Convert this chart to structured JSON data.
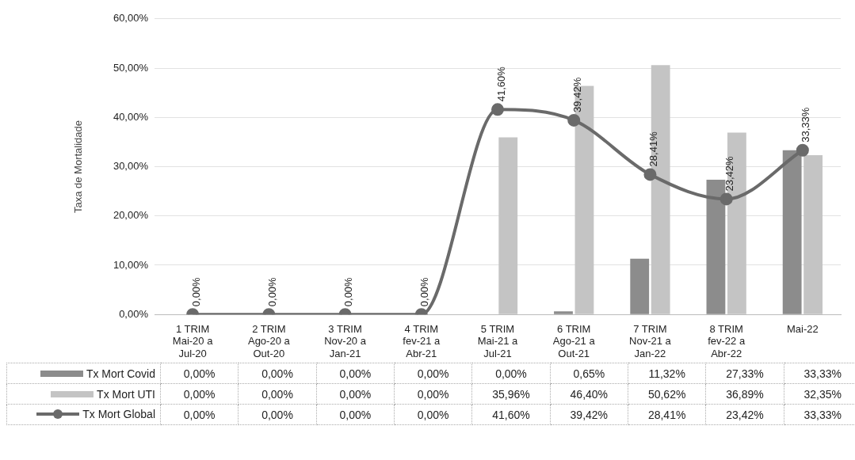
{
  "chart_data": {
    "type": "bar",
    "ylabel": "Taxa de Mortalidade",
    "categories": [
      "1 TRIM Mai-20 a Jul-20",
      "2 TRIM Ago-20 a Out-20",
      "3 TRIM Nov-20 a Jan-21",
      "4 TRIM fev-21 a Abr-21",
      "5 TRIM Mai-21 a Jul-21",
      "6 TRIM Ago-21 a Out-21",
      "7 TRIM Nov-21 a Jan-22",
      "8 TRIM fev-22 a Abr-22",
      "Mai-22"
    ],
    "series": [
      {
        "name": "Tx Mort Covid",
        "color": "#8c8c8c",
        "values": [
          0,
          0,
          0,
          0,
          0,
          0.65,
          11.32,
          27.33,
          33.33
        ],
        "value_labels": [
          "0,00%",
          "0,00%",
          "0,00%",
          "0,00%",
          "0,00%",
          "0,65%",
          "11,32%",
          "27,33%",
          "33,33%"
        ]
      },
      {
        "name": "Tx Mort UTI",
        "color": "#c4c4c4",
        "values": [
          0,
          0,
          0,
          0,
          35.96,
          46.4,
          50.62,
          36.89,
          32.35
        ],
        "value_labels": [
          "0,00%",
          "0,00%",
          "0,00%",
          "0,00%",
          "35,96%",
          "46,40%",
          "50,62%",
          "36,89%",
          "32,35%"
        ]
      },
      {
        "name": "Tx Mort Global",
        "type": "line",
        "color": "#6a6a6a",
        "values": [
          0,
          0,
          0,
          0,
          41.6,
          39.42,
          28.41,
          23.42,
          33.33
        ],
        "value_labels": [
          "0,00%",
          "0,00%",
          "0,00%",
          "0,00%",
          "41,60%",
          "39,42%",
          "28,41%",
          "23,42%",
          "33,33%"
        ]
      }
    ],
    "ylim": [
      0,
      60
    ],
    "yticks": [
      {
        "value": 0,
        "label": "0,00%"
      },
      {
        "value": 10,
        "label": "10,00%"
      },
      {
        "value": 20,
        "label": "20,00%"
      },
      {
        "value": 30,
        "label": "30,00%"
      },
      {
        "value": 40,
        "label": "40,00%"
      },
      {
        "value": 50,
        "label": "50,00%"
      },
      {
        "value": 60,
        "label": "60,00%"
      }
    ],
    "grid": "y",
    "legend": "bottom",
    "marker": "circle"
  }
}
